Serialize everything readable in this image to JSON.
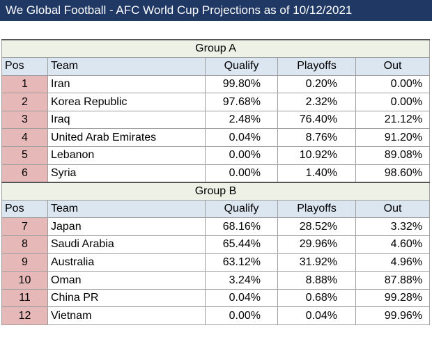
{
  "title": "We Global Football - AFC World Cup Projections as of 10/12/2021",
  "headers": {
    "pos": "Pos",
    "team": "Team",
    "qualify": "Qualify",
    "playoffs": "Playoffs",
    "out": "Out"
  },
  "groups": [
    {
      "name": "Group A",
      "rows": [
        {
          "pos": "1",
          "team": "Iran",
          "qualify": "99.80%",
          "playoffs": "0.20%",
          "out": "0.00%"
        },
        {
          "pos": "2",
          "team": "Korea Republic",
          "qualify": "97.68%",
          "playoffs": "2.32%",
          "out": "0.00%"
        },
        {
          "pos": "3",
          "team": "Iraq",
          "qualify": "2.48%",
          "playoffs": "76.40%",
          "out": "21.12%"
        },
        {
          "pos": "4",
          "team": "United Arab Emirates",
          "qualify": "0.04%",
          "playoffs": "8.76%",
          "out": "91.20%"
        },
        {
          "pos": "5",
          "team": "Lebanon",
          "qualify": "0.00%",
          "playoffs": "10.92%",
          "out": "89.08%"
        },
        {
          "pos": "6",
          "team": "Syria",
          "qualify": "0.00%",
          "playoffs": "1.40%",
          "out": "98.60%"
        }
      ]
    },
    {
      "name": "Group B",
      "rows": [
        {
          "pos": "7",
          "team": "Japan",
          "qualify": "68.16%",
          "playoffs": "28.52%",
          "out": "3.32%"
        },
        {
          "pos": "8",
          "team": "Saudi Arabia",
          "qualify": "65.44%",
          "playoffs": "29.96%",
          "out": "4.60%"
        },
        {
          "pos": "9",
          "team": "Australia",
          "qualify": "63.12%",
          "playoffs": "31.92%",
          "out": "4.96%"
        },
        {
          "pos": "10",
          "team": "Oman",
          "qualify": "3.24%",
          "playoffs": "8.88%",
          "out": "87.88%"
        },
        {
          "pos": "11",
          "team": "China PR",
          "qualify": "0.04%",
          "playoffs": "0.68%",
          "out": "99.28%"
        },
        {
          "pos": "12",
          "team": "Vietnam",
          "qualify": "0.00%",
          "playoffs": "0.04%",
          "out": "99.96%"
        }
      ]
    }
  ],
  "colors": {
    "title_bg": "#1f3864",
    "group_bg": "#edf1e6",
    "header_bg": "#dce6f1",
    "pos_bg": "#e6b8b7"
  }
}
